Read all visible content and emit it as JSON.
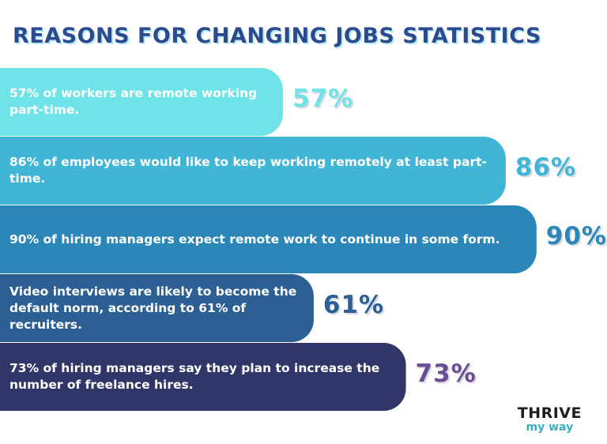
{
  "chart_data": {
    "type": "bar",
    "title": "REASONS FOR CHANGING JOBS STATISTICS",
    "orientation": "horizontal",
    "categories": [
      "57% of workers are remote working part-time.",
      "86% of employees would like to keep working remotely at least part-time.",
      "90% of hiring managers expect remote work to continue in some form.",
      "Video interviews are likely to become the default norm, according to 61% of recruiters.",
      "73% of hiring managers say they plan to increase the number of freelance hires."
    ],
    "values": [
      57,
      86,
      90,
      61,
      73
    ],
    "value_labels": [
      "57%",
      "86%",
      "90%",
      "61%",
      "73%"
    ],
    "bar_colors": [
      "#6ee3e8",
      "#40b5d6",
      "#2a87b8",
      "#2c5f94",
      "#303667"
    ],
    "label_colors": [
      "#6ee3e8",
      "#40b5d6",
      "#2a87b8",
      "#2c5f94",
      "#6a4c93"
    ],
    "xlim": [
      0,
      100
    ]
  },
  "brand": {
    "line1": "THRIVE",
    "line2": "my way"
  }
}
